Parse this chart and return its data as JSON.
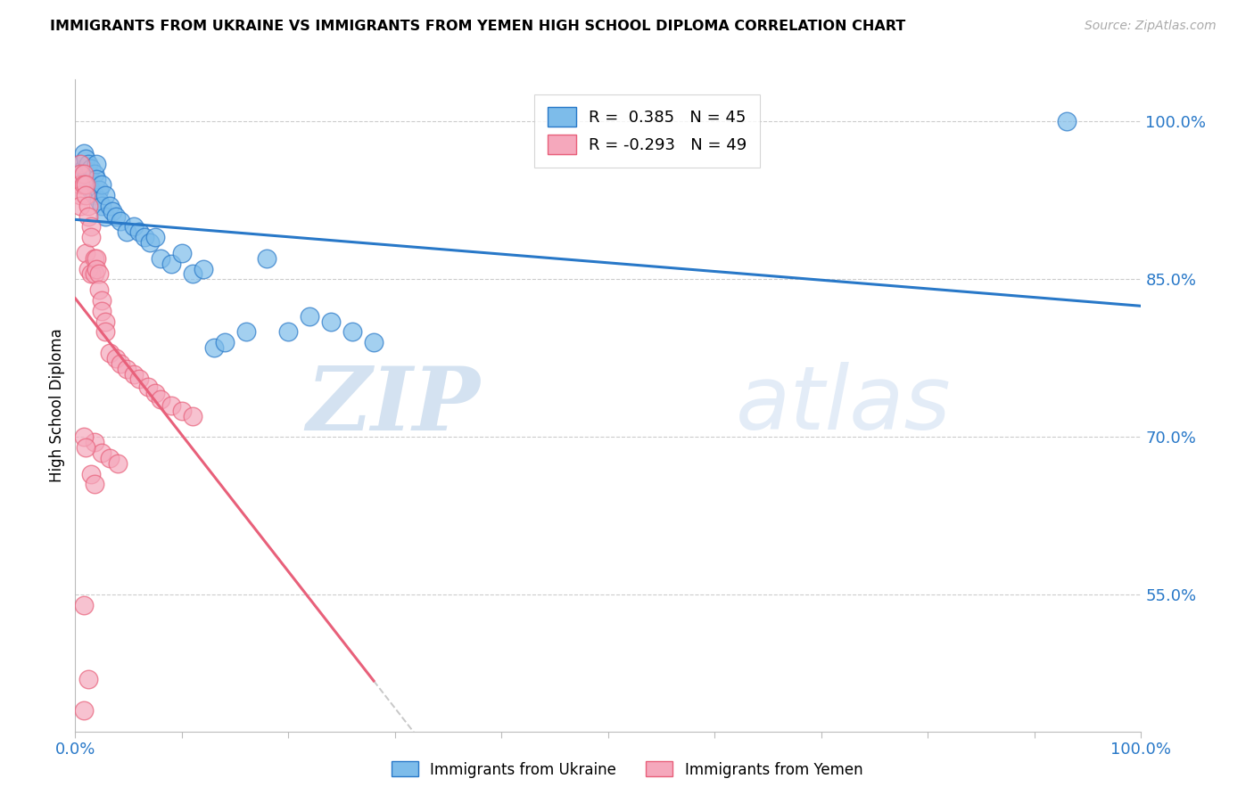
{
  "title": "IMMIGRANTS FROM UKRAINE VS IMMIGRANTS FROM YEMEN HIGH SCHOOL DIPLOMA CORRELATION CHART",
  "source": "Source: ZipAtlas.com",
  "ylabel": "High School Diploma",
  "xlim": [
    0.0,
    1.0
  ],
  "ylim": [
    0.42,
    1.04
  ],
  "yticks": [
    0.55,
    0.7,
    0.85,
    1.0
  ],
  "ytick_labels": [
    "55.0%",
    "70.0%",
    "85.0%",
    "100.0%"
  ],
  "ukraine_R": 0.385,
  "ukraine_N": 45,
  "yemen_R": -0.293,
  "yemen_N": 49,
  "ukraine_color": "#7dbcea",
  "yemen_color": "#f5a8bc",
  "ukraine_line_color": "#2878c8",
  "yemen_line_color": "#e8607a",
  "trend_dashed_color": "#c8c8c8",
  "watermark_zip": "ZIP",
  "watermark_atlas": "atlas",
  "ukraine_x": [
    0.005,
    0.005,
    0.008,
    0.008,
    0.01,
    0.01,
    0.012,
    0.012,
    0.015,
    0.015,
    0.018,
    0.018,
    0.02,
    0.02,
    0.022,
    0.022,
    0.025,
    0.025,
    0.028,
    0.028,
    0.032,
    0.035,
    0.038,
    0.042,
    0.048,
    0.055,
    0.06,
    0.065,
    0.07,
    0.075,
    0.08,
    0.09,
    0.1,
    0.11,
    0.12,
    0.13,
    0.14,
    0.16,
    0.18,
    0.2,
    0.22,
    0.24,
    0.26,
    0.28,
    0.93
  ],
  "ukraine_y": [
    0.96,
    0.95,
    0.97,
    0.955,
    0.965,
    0.945,
    0.96,
    0.94,
    0.955,
    0.935,
    0.95,
    0.93,
    0.96,
    0.945,
    0.935,
    0.925,
    0.94,
    0.92,
    0.93,
    0.91,
    0.92,
    0.915,
    0.91,
    0.905,
    0.895,
    0.9,
    0.895,
    0.89,
    0.885,
    0.89,
    0.87,
    0.865,
    0.875,
    0.855,
    0.86,
    0.785,
    0.79,
    0.8,
    0.87,
    0.8,
    0.815,
    0.81,
    0.8,
    0.79,
    1.0
  ],
  "yemen_x": [
    0.005,
    0.005,
    0.005,
    0.005,
    0.005,
    0.008,
    0.008,
    0.01,
    0.01,
    0.01,
    0.012,
    0.012,
    0.012,
    0.015,
    0.015,
    0.015,
    0.018,
    0.018,
    0.02,
    0.02,
    0.022,
    0.022,
    0.025,
    0.025,
    0.028,
    0.028,
    0.032,
    0.038,
    0.042,
    0.048,
    0.055,
    0.06,
    0.068,
    0.075,
    0.08,
    0.09,
    0.1,
    0.11,
    0.018,
    0.025,
    0.032,
    0.04,
    0.008,
    0.01,
    0.015,
    0.018,
    0.008,
    0.012,
    0.008
  ],
  "yemen_y": [
    0.96,
    0.95,
    0.94,
    0.93,
    0.92,
    0.95,
    0.94,
    0.94,
    0.93,
    0.875,
    0.92,
    0.91,
    0.86,
    0.9,
    0.89,
    0.855,
    0.87,
    0.855,
    0.87,
    0.86,
    0.855,
    0.84,
    0.83,
    0.82,
    0.81,
    0.8,
    0.78,
    0.775,
    0.77,
    0.765,
    0.76,
    0.755,
    0.748,
    0.742,
    0.736,
    0.73,
    0.725,
    0.72,
    0.695,
    0.685,
    0.68,
    0.675,
    0.7,
    0.69,
    0.665,
    0.655,
    0.54,
    0.47,
    0.44
  ]
}
